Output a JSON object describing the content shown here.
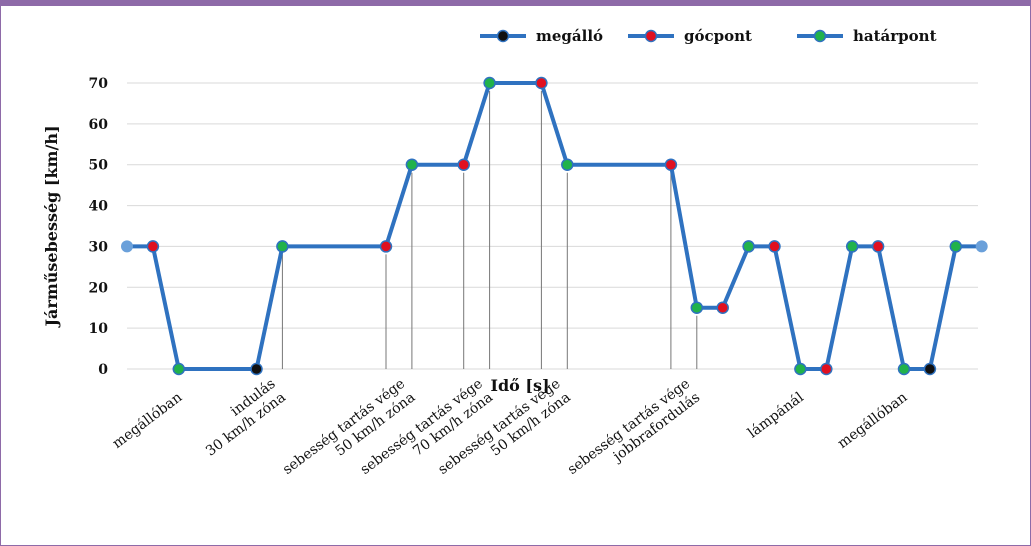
{
  "chart_data": {
    "type": "line",
    "xlabel": "Idő [s]",
    "ylabel": "Járműsebesség [km/h]",
    "ylim": [
      0,
      70
    ],
    "yticks": [
      "0",
      "10",
      "20",
      "30",
      "40",
      "50",
      "60",
      "70"
    ],
    "grid": true,
    "legend_position": "top-right",
    "legend": [
      {
        "name": "megálló",
        "marker_color": "#111111"
      },
      {
        "name": "gócpont",
        "marker_color": "#e01020"
      },
      {
        "name": "határpont",
        "marker_color": "#21b24b"
      }
    ],
    "line_color": "#2f72c0",
    "end_color": "#6aa0da",
    "points": [
      {
        "x": 0,
        "y": 30,
        "kind": "end"
      },
      {
        "x": 1,
        "y": 30,
        "kind": "gócpont"
      },
      {
        "x": 2,
        "y": 0,
        "kind": "határpont"
      },
      {
        "x": 5,
        "y": 0,
        "kind": "megálló"
      },
      {
        "x": 6,
        "y": 30,
        "kind": "határpont"
      },
      {
        "x": 10,
        "y": 30,
        "kind": "gócpont"
      },
      {
        "x": 11,
        "y": 50,
        "kind": "határpont"
      },
      {
        "x": 13,
        "y": 50,
        "kind": "gócpont"
      },
      {
        "x": 14,
        "y": 70,
        "kind": "határpont"
      },
      {
        "x": 16,
        "y": 70,
        "kind": "gócpont"
      },
      {
        "x": 17,
        "y": 50,
        "kind": "határpont"
      },
      {
        "x": 21,
        "y": 50,
        "kind": "gócpont"
      },
      {
        "x": 22,
        "y": 15,
        "kind": "határpont"
      },
      {
        "x": 23,
        "y": 15,
        "kind": "gócpont"
      },
      {
        "x": 24,
        "y": 30,
        "kind": "határpont"
      },
      {
        "x": 25,
        "y": 30,
        "kind": "gócpont"
      },
      {
        "x": 26,
        "y": 0,
        "kind": "határpont"
      },
      {
        "x": 27,
        "y": 0,
        "kind": "gócpont"
      },
      {
        "x": 28,
        "y": 30,
        "kind": "határpont"
      },
      {
        "x": 29,
        "y": 30,
        "kind": "gócpont"
      },
      {
        "x": 30,
        "y": 0,
        "kind": "határpont"
      },
      {
        "x": 31,
        "y": 0,
        "kind": "megálló"
      },
      {
        "x": 32,
        "y": 30,
        "kind": "határpont"
      },
      {
        "x": 33,
        "y": 30,
        "kind": "end"
      }
    ],
    "markers_x": [
      6,
      10,
      11,
      13,
      14,
      16,
      17,
      21,
      22
    ],
    "annotations": [
      {
        "x": 2,
        "lines": [
          "megállóban"
        ]
      },
      {
        "x": 6,
        "lines": [
          "indulás",
          "30 km/h zóna"
        ]
      },
      {
        "x": 11,
        "lines": [
          "sebesség tartás vége",
          "50 km/h zóna"
        ]
      },
      {
        "x": 14,
        "lines": [
          "sebesség tartás vége",
          "70 km/h zóna"
        ]
      },
      {
        "x": 17,
        "lines": [
          "sebesség tartás vége",
          "50 km/h zóna"
        ]
      },
      {
        "x": 22,
        "lines": [
          "sebesség tartás vége",
          "jobbrafordulás"
        ]
      },
      {
        "x": 26,
        "lines": [
          "lámpánál"
        ]
      },
      {
        "x": 30,
        "lines": [
          "megállóban"
        ]
      }
    ]
  }
}
